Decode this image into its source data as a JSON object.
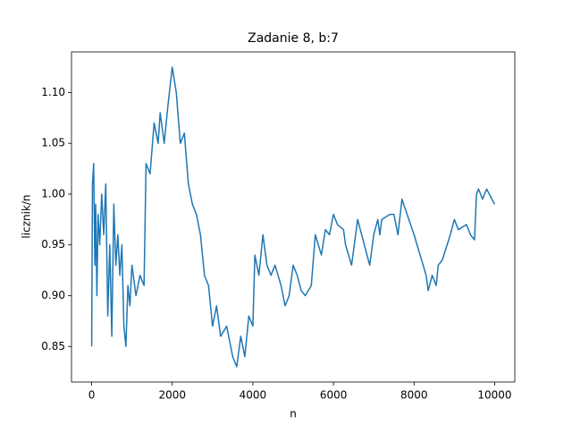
{
  "chart_data": {
    "type": "line",
    "title": "Zadanie 8, b:7",
    "x_label": "n",
    "y_label": "licznik/n",
    "series": [
      {
        "color": "#1f77b4",
        "x": [
          1,
          20,
          50,
          80,
          100,
          130,
          160,
          200,
          250,
          300,
          350,
          400,
          450,
          500,
          550,
          600,
          650,
          700,
          750,
          800,
          850,
          900,
          950,
          1000,
          1100,
          1200,
          1300,
          1350,
          1450,
          1550,
          1650,
          1700,
          1800,
          1900,
          2000,
          2100,
          2200,
          2300,
          2400,
          2500,
          2600,
          2700,
          2800,
          2900,
          3000,
          3100,
          3200,
          3350,
          3500,
          3600,
          3700,
          3800,
          3900,
          4000,
          4050,
          4150,
          4250,
          4350,
          4450,
          4550,
          4700,
          4800,
          4900,
          5000,
          5100,
          5200,
          5300,
          5450,
          5550,
          5700,
          5800,
          5900,
          6000,
          6100,
          6250,
          6300,
          6450,
          6500,
          6600,
          6700,
          6800,
          6900,
          7000,
          7100,
          7150,
          7200,
          7400,
          7500,
          7600,
          7700,
          8000,
          8300,
          8350,
          8450,
          8550,
          8600,
          8700,
          8900,
          9000,
          9100,
          9300,
          9400,
          9500,
          9550,
          9600,
          9700,
          9800,
          10000
        ],
        "values": [
          0.85,
          1.01,
          1.03,
          0.93,
          0.99,
          0.9,
          0.98,
          0.95,
          1.0,
          0.96,
          1.01,
          0.88,
          0.95,
          0.86,
          0.99,
          0.93,
          0.96,
          0.92,
          0.95,
          0.87,
          0.85,
          0.91,
          0.89,
          0.93,
          0.9,
          0.92,
          0.91,
          1.03,
          1.02,
          1.07,
          1.05,
          1.08,
          1.05,
          1.09,
          1.125,
          1.1,
          1.05,
          1.06,
          1.01,
          0.99,
          0.98,
          0.96,
          0.92,
          0.91,
          0.87,
          0.89,
          0.86,
          0.87,
          0.84,
          0.83,
          0.86,
          0.84,
          0.88,
          0.87,
          0.94,
          0.92,
          0.96,
          0.93,
          0.92,
          0.93,
          0.91,
          0.89,
          0.9,
          0.93,
          0.92,
          0.905,
          0.9,
          0.91,
          0.96,
          0.94,
          0.965,
          0.96,
          0.98,
          0.97,
          0.965,
          0.95,
          0.93,
          0.945,
          0.975,
          0.96,
          0.945,
          0.93,
          0.96,
          0.975,
          0.96,
          0.975,
          0.98,
          0.98,
          0.96,
          0.995,
          0.96,
          0.92,
          0.905,
          0.92,
          0.91,
          0.93,
          0.935,
          0.96,
          0.975,
          0.965,
          0.97,
          0.96,
          0.955,
          1.0,
          1.005,
          0.995,
          1.005,
          0.99
        ]
      }
    ],
    "xlim": [
      -500,
      10500
    ],
    "xticks": [
      0,
      2000,
      4000,
      6000,
      8000,
      10000
    ],
    "ylim": [
      0.815,
      1.14
    ],
    "yticks": [
      0.85,
      {
        "value": 0.9,
        "label": "0.90"
      },
      0.95,
      {
        "value": 1,
        "label": "1.00"
      },
      1.05,
      {
        "value": 1.1,
        "label": "1.10"
      }
    ]
  }
}
